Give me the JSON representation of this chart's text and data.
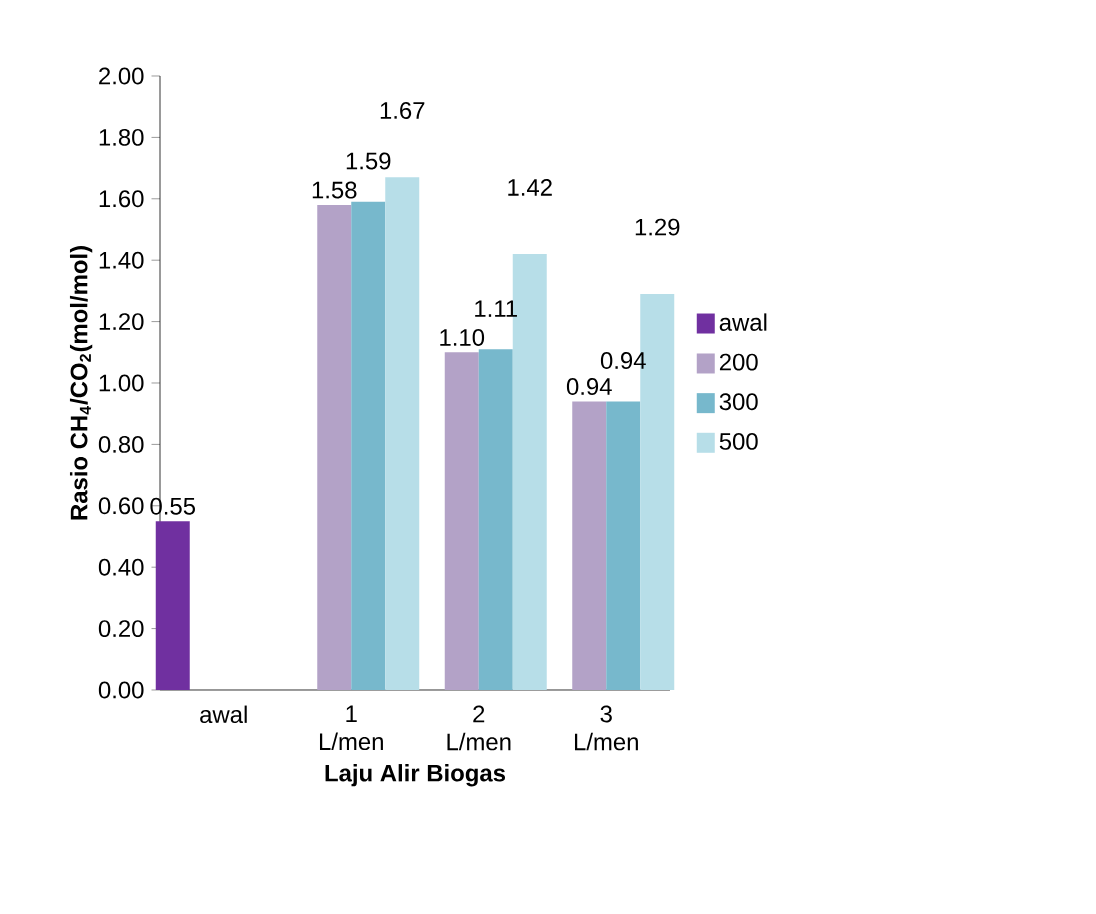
{
  "chart_data": {
    "type": "bar",
    "xlabel": "Laju Alir Biogas",
    "ylabel": "Rasio CH$_{4}$/CO$_{2}$(mol/mol)",
    "categories": [
      "awal",
      "1 L/men",
      "2 L/men",
      "3 L/men"
    ],
    "series": [
      {
        "name": "awal",
        "color": "#7030a0",
        "values": [
          0.55,
          null,
          null,
          null
        ],
        "value_labels": [
          "0.55",
          null,
          null,
          null
        ]
      },
      {
        "name": "200",
        "color": "#b3a2c7",
        "values": [
          null,
          1.58,
          1.1,
          0.94
        ],
        "value_labels": [
          null,
          "1.58",
          "1.10",
          "0.94"
        ]
      },
      {
        "name": "300",
        "color": "#77b8cc",
        "values": [
          null,
          1.59,
          1.11,
          0.94
        ],
        "value_labels": [
          null,
          "1.59",
          "1.11",
          "0.94"
        ]
      },
      {
        "name": "500",
        "color": "#b7dee8",
        "values": [
          null,
          1.67,
          1.42,
          1.29
        ],
        "value_labels": [
          null,
          "1.67",
          "1.42",
          "1.29"
        ]
      }
    ],
    "ylim": [
      0,
      2
    ],
    "yticks": [
      {
        "value": 0,
        "label": "0.00"
      },
      {
        "value": 0.2,
        "label": "0.20"
      },
      {
        "value": 0.4,
        "label": "0.40"
      },
      {
        "value": 0.6,
        "label": "0.60"
      },
      {
        "value": 0.8,
        "label": "0.80"
      },
      {
        "value": 1,
        "label": "1.00"
      },
      {
        "value": 1.2,
        "label": "1.20"
      },
      {
        "value": 1.4,
        "label": "1.40"
      },
      {
        "value": 1.6,
        "label": "1.60"
      },
      {
        "value": 1.8,
        "label": "1.80"
      },
      {
        "value": 2,
        "label": "2.00"
      }
    ],
    "legend": "right",
    "grid": false
  }
}
